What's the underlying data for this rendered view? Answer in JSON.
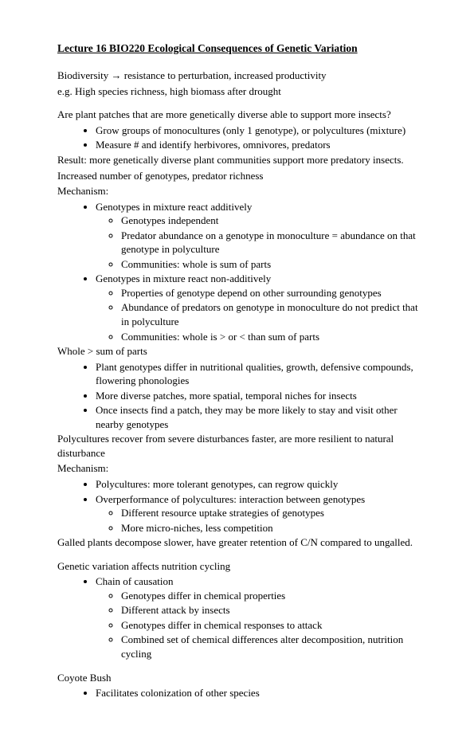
{
  "title": "Lecture 16 BIO220 Ecological Consequences of Genetic Variation",
  "intro_line1_pre": "Biodiversity ",
  "intro_line1_arrow": "→",
  "intro_line1_post": " resistance to perturbation, increased productivity",
  "intro_line2": "e.g. High species richness, high biomass after drought",
  "q1": "Are plant patches that are more genetically diverse able to support more insects?",
  "q1_bullets": [
    "Grow groups of monocultures (only 1 genotype), or polycultures (mixture)",
    "Measure # and identify herbivores, omnivores, predators"
  ],
  "result1": "Result: more genetically diverse plant communities support more predatory insects.",
  "result2": "Increased number of genotypes, predator richness",
  "mech_label": "Mechanism:",
  "mech1_top": "Genotypes in mixture react additively",
  "mech1_sub": [
    "Genotypes independent",
    "Predator abundance on a genotype in monoculture = abundance on that genotype in polyculture",
    "Communities: whole is sum of parts"
  ],
  "mech2_top": "Genotypes in mixture react non-additively",
  "mech2_sub": [
    "Properties of genotype depend on other surrounding genotypes",
    "Abundance of predators on genotype in monoculture do not predict that in polyculture",
    "Communities: whole is > or < than sum of parts"
  ],
  "whole_label": "Whole > sum of parts",
  "whole_bullets": [
    "Plant genotypes differ in nutritional qualities, growth, defensive compounds, flowering phonologies",
    "More diverse patches, more spatial, temporal niches for insects",
    "Once insects find a patch, they may be more likely to stay and visit other nearby genotypes"
  ],
  "poly_recover": "Polycultures recover from severe disturbances faster, are more resilient to natural disturbance",
  "mech_label2": "Mechanism:",
  "poly_mech1": "Polycultures: more tolerant genotypes, can regrow quickly",
  "poly_mech2_top": "Overperformance of polycultures: interaction between genotypes",
  "poly_mech2_sub": [
    "Different resource uptake strategies of genotypes",
    "More micro-niches, less competition"
  ],
  "galled": "Galled plants decompose slower, have greater retention of C/N compared to ungalled.",
  "gv_heading": "Genetic variation affects nutrition cycling",
  "chain_top": "Chain of causation",
  "chain_sub": [
    "Genotypes differ in chemical properties",
    "Different attack by insects",
    "Genotypes differ in chemical responses to attack",
    "Combined set of chemical differences alter decomposition, nutrition cycling"
  ],
  "coyote_heading": "Coyote Bush",
  "coyote_bullets": [
    "Facilitates colonization of other species"
  ]
}
